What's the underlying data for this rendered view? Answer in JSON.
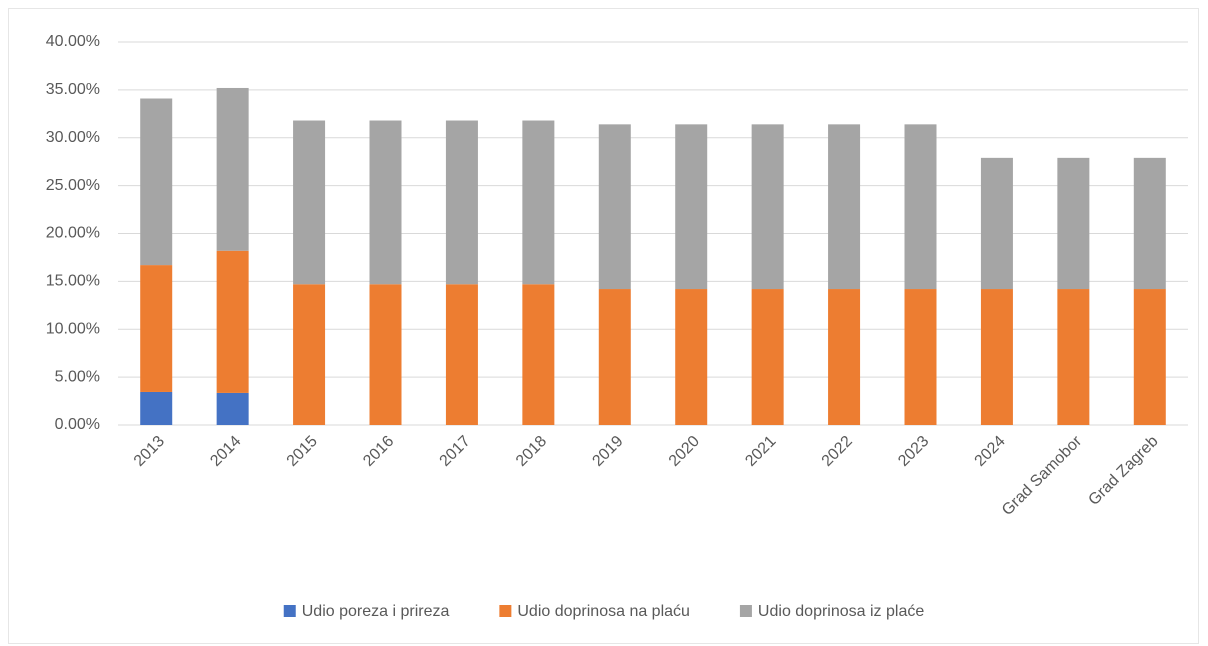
{
  "chart_data": {
    "type": "stacked_bar",
    "categories": [
      "2013",
      "2014",
      "2015",
      "2016",
      "2017",
      "2018",
      "2019",
      "2020",
      "2021",
      "2022",
      "2023",
      "2024",
      "Grad Samobor",
      "Grad Zagreb"
    ],
    "series": [
      {
        "name": "Udio poreza i prireza",
        "color": "#4472c4",
        "values": [
          3.45,
          3.35,
          0,
          0,
          0,
          0,
          0,
          0,
          0,
          0,
          0,
          0,
          0,
          0
        ]
      },
      {
        "name": "Udio doprinosa na plaću",
        "color": "#ed7d31",
        "values": [
          13.25,
          14.85,
          14.7,
          14.7,
          14.7,
          14.7,
          14.2,
          14.2,
          14.2,
          14.2,
          14.2,
          14.2,
          14.2,
          14.2
        ]
      },
      {
        "name": "Udio doprinosa iz plaće",
        "color": "#a5a5a5",
        "values": [
          17.4,
          17.0,
          17.1,
          17.1,
          17.1,
          17.1,
          17.2,
          17.2,
          17.2,
          17.2,
          17.2,
          13.7,
          13.7,
          13.7
        ]
      }
    ],
    "ylim": [
      0,
      40
    ],
    "yticks": [
      {
        "value": 0,
        "label": "0.00%"
      },
      {
        "value": 5,
        "label": "5.00%"
      },
      {
        "value": 10,
        "label": "10.00%"
      },
      {
        "value": 15,
        "label": "15.00%"
      },
      {
        "value": 20,
        "label": "20.00%"
      },
      {
        "value": 25,
        "label": "25.00%"
      },
      {
        "value": 30,
        "label": "30.00%"
      },
      {
        "value": 35,
        "label": "35.00%"
      },
      {
        "value": 40,
        "label": "40.00%"
      }
    ],
    "grid": true,
    "legend": "bottom"
  }
}
